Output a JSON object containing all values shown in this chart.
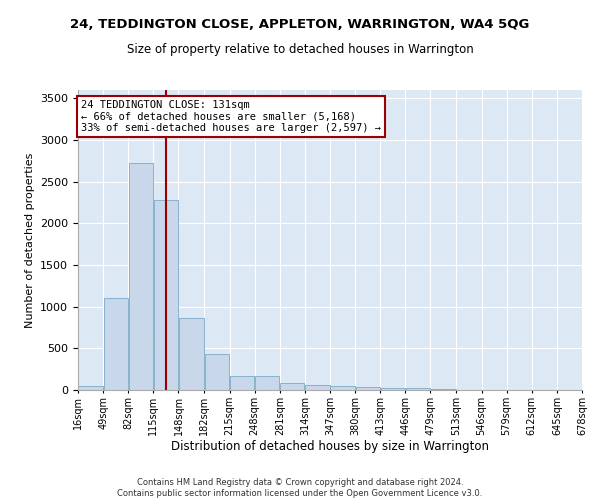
{
  "title": "24, TEDDINGTON CLOSE, APPLETON, WARRINGTON, WA4 5QG",
  "subtitle": "Size of property relative to detached houses in Warrington",
  "xlabel": "Distribution of detached houses by size in Warrington",
  "ylabel": "Number of detached properties",
  "bar_color": "#c8d8ea",
  "bar_edge_color": "#7aaac8",
  "background_color": "#dde8f5",
  "grid_color": "#ffffff",
  "vline_x": 131,
  "vline_color": "#990000",
  "annotation_text": "24 TEDDINGTON CLOSE: 131sqm\n← 66% of detached houses are smaller (5,168)\n33% of semi-detached houses are larger (2,597) →",
  "annotation_box_color": "#990000",
  "bin_edges": [
    16,
    49,
    82,
    115,
    148,
    182,
    215,
    248,
    281,
    314,
    347,
    380,
    413,
    446,
    479,
    513,
    546,
    579,
    612,
    645,
    678
  ],
  "bin_heights": [
    50,
    1110,
    2730,
    2280,
    870,
    430,
    170,
    165,
    90,
    65,
    50,
    35,
    30,
    20,
    10,
    5,
    5,
    3,
    2,
    2
  ],
  "ylim": [
    0,
    3600
  ],
  "xlim": [
    16,
    678
  ],
  "yticks": [
    0,
    500,
    1000,
    1500,
    2000,
    2500,
    3000,
    3500
  ],
  "xtick_labels": [
    "16sqm",
    "49sqm",
    "82sqm",
    "115sqm",
    "148sqm",
    "182sqm",
    "215sqm",
    "248sqm",
    "281sqm",
    "314sqm",
    "347sqm",
    "380sqm",
    "413sqm",
    "446sqm",
    "479sqm",
    "513sqm",
    "546sqm",
    "579sqm",
    "612sqm",
    "645sqm",
    "678sqm"
  ],
  "footer_line1": "Contains HM Land Registry data © Crown copyright and database right 2024.",
  "footer_line2": "Contains public sector information licensed under the Open Government Licence v3.0."
}
